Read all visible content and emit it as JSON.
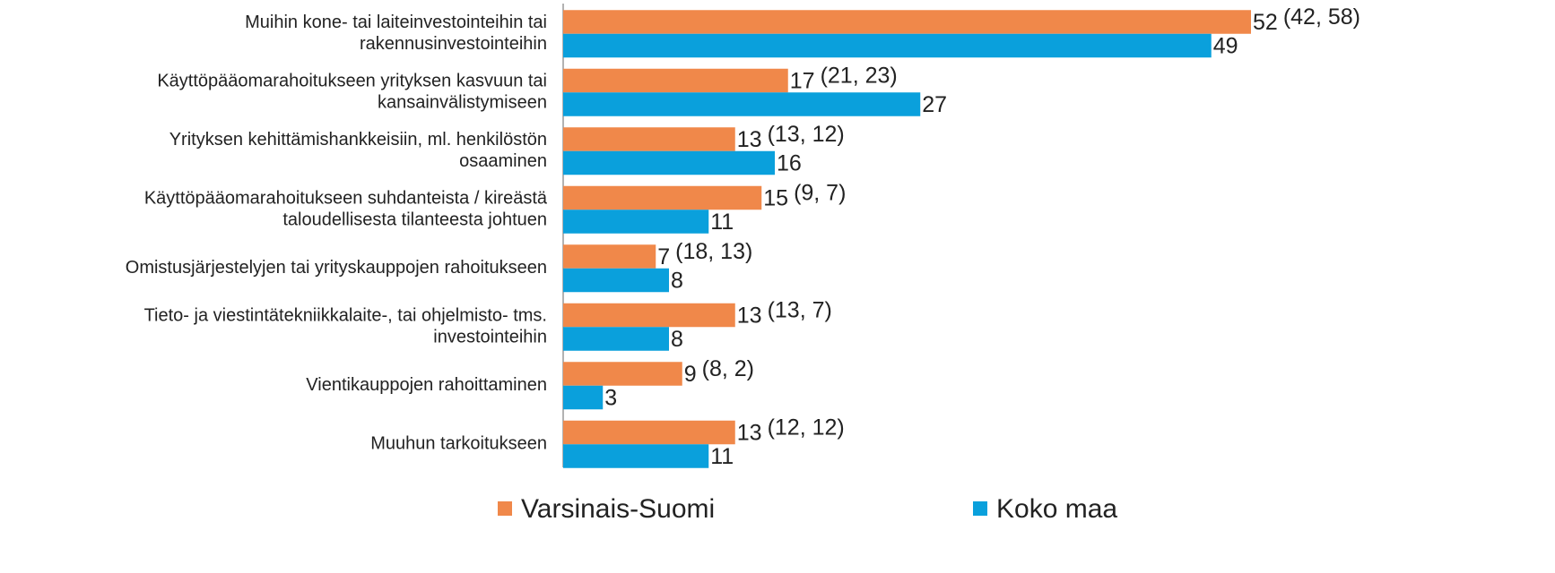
{
  "chart_data": {
    "type": "bar",
    "orientation": "horizontal",
    "categories": [
      "Muihin kone- tai laiteinvestointeihin tai\nrakennusinvestointeihin",
      "Käyttöpääomarahoitukseen yrityksen kasvuun tai\nkansainvälistymiseen",
      "Yrityksen kehittämishankkeisiin, ml. henkilöstön\nosaaminen",
      "Käyttöpääomarahoitukseen suhdanteista / kireästä\ntaloudellisesta tilanteesta johtuen",
      "Omistusjärjestelyjen tai yrityskauppojen rahoitukseen",
      "Tieto- ja viestintätekniikkalaite-, tai ohjelmisto- tms.\ninvestointeihin",
      "Vientikauppojen rahoittaminen",
      "Muuhun tarkoitukseen"
    ],
    "series": [
      {
        "name": "Varsinais-Suomi",
        "color": "#f0884a",
        "values": [
          52,
          17,
          13,
          15,
          7,
          13,
          9,
          13
        ]
      },
      {
        "name": "Koko maa",
        "color": "#0aa0dc",
        "values": [
          49,
          27,
          16,
          11,
          8,
          8,
          3,
          11
        ]
      }
    ],
    "annotations": [
      "(42, 58)",
      "(21, 23)",
      "(13, 12)",
      "(9, 7)",
      "(18, 13)",
      "(13, 7)",
      "(8, 2)",
      "(12, 12)"
    ],
    "legend": "bottom"
  }
}
